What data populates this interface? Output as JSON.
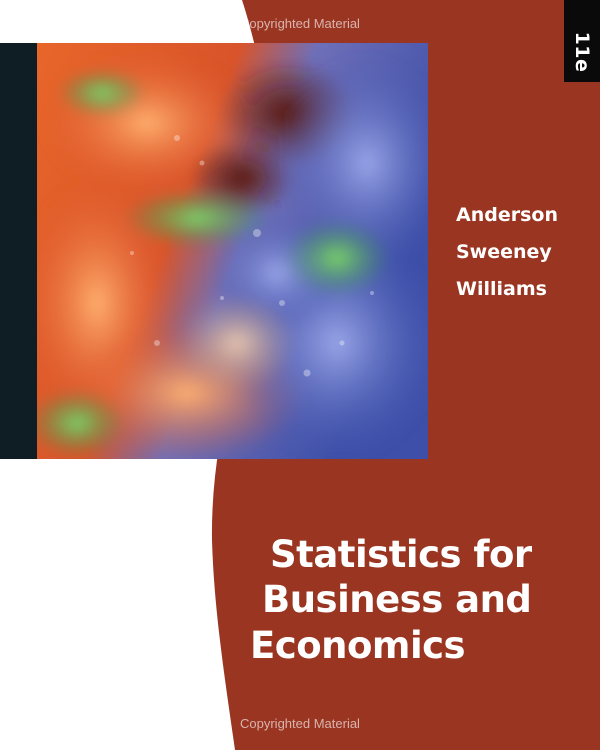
{
  "cover": {
    "watermark_top": "Copyrighted Material",
    "watermark_bottom": "Copyrighted Material",
    "edition": "11e",
    "authors": [
      "Anderson",
      "Sweeney",
      "Williams"
    ],
    "title_lines": [
      "Statistics for",
      "Business and",
      "Economics"
    ]
  },
  "colors": {
    "background_red": "#9a3522",
    "page_white": "#ffffff",
    "spine_dark": "#0f1e24",
    "edition_tab_black": "#0a0a0a",
    "text_white": "#ffffff"
  },
  "artwork": {
    "subject": "abstract glass art in orange, blue and green"
  }
}
